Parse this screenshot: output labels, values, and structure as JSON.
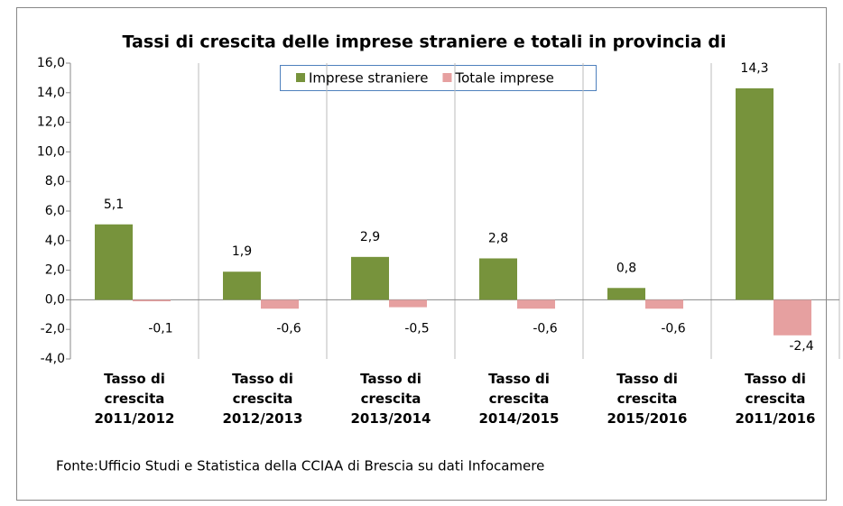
{
  "chart_data": {
    "type": "bar",
    "title": "Tassi di crescita delle imprese straniere e totali in provincia di",
    "categories": [
      "Tasso di crescita 2011/2012",
      "Tasso di crescita 2012/2013",
      "Tasso di crescita 2013/2014",
      "Tasso di crescita 2014/2015",
      "Tasso di crescita 2015/2016",
      "Tasso di crescita 2011/2016"
    ],
    "series": [
      {
        "name": "Imprese straniere",
        "color": "#77933c",
        "values": [
          5.1,
          1.9,
          2.9,
          2.8,
          0.8,
          14.3
        ],
        "value_labels": [
          "5,1",
          "1,9",
          "2,9",
          "2,8",
          "0,8",
          "14,3"
        ]
      },
      {
        "name": "Totale imprese",
        "color": "#e6a0a0",
        "values": [
          -0.1,
          -0.6,
          -0.5,
          -0.6,
          -0.6,
          -2.4
        ],
        "value_labels": [
          "-0,1",
          "-0,6",
          "-0,5",
          "-0,6",
          "-0,6",
          "-2,4"
        ]
      }
    ],
    "ylim": [
      -4,
      16
    ],
    "yticks": [
      {
        "value": -4,
        "label": "-4,0"
      },
      {
        "value": -2,
        "label": "-2,0"
      },
      {
        "value": 0,
        "label": "0,0"
      },
      {
        "value": 2,
        "label": "2,0"
      },
      {
        "value": 4,
        "label": "4,0"
      },
      {
        "value": 6,
        "label": "6,0"
      },
      {
        "value": 8,
        "label": "8,0"
      },
      {
        "value": 10,
        "label": "10,0"
      },
      {
        "value": 12,
        "label": "12,0"
      },
      {
        "value": 14,
        "label": "14,0"
      },
      {
        "value": 16,
        "label": "16,0"
      }
    ],
    "legend": "top",
    "source": "Fonte:Ufficio Studi e Statistica della CCIAA di Brescia su dati Infocamere"
  }
}
